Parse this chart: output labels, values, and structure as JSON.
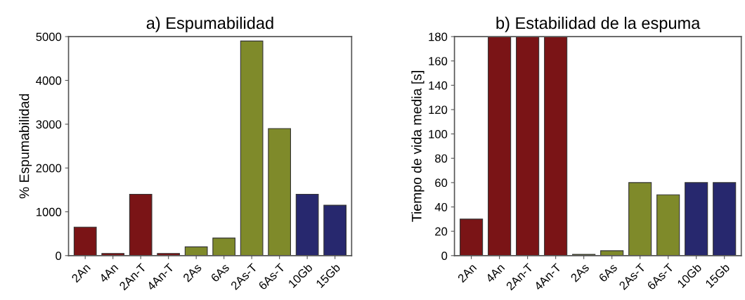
{
  "chart_data": [
    {
      "type": "bar",
      "title": "a) Espumabilidad",
      "ylabel": "% Espumabilidad",
      "categories": [
        "2An",
        "4An",
        "2An-T",
        "4An-T",
        "2As",
        "6As",
        "2As-T",
        "6As-T",
        "10Gb",
        "15Gb"
      ],
      "values": [
        650,
        50,
        1400,
        50,
        200,
        400,
        4900,
        2900,
        1400,
        1150
      ],
      "colors": [
        "#7a1416",
        "#7a1416",
        "#7a1416",
        "#7a1416",
        "#7f8a2a",
        "#7f8a2a",
        "#7f8a2a",
        "#7f8a2a",
        "#27286e",
        "#27286e"
      ],
      "ylim": [
        0,
        5000
      ],
      "yticks": [
        0,
        1000,
        2000,
        3000,
        4000,
        5000
      ],
      "grid": false
    },
    {
      "type": "bar",
      "title": "b) Estabilidad de la espuma",
      "ylabel": "Tiempo de vida media [s]",
      "categories": [
        "2An",
        "4An",
        "2An-T",
        "4An-T",
        "2As",
        "6As",
        "2As-T",
        "6As-T",
        "10Gb",
        "15Gb"
      ],
      "values": [
        30,
        180,
        180,
        180,
        1,
        4,
        60,
        50,
        60,
        60
      ],
      "colors": [
        "#7a1416",
        "#7a1416",
        "#7a1416",
        "#7a1416",
        "#7f8a2a",
        "#7f8a2a",
        "#7f8a2a",
        "#7f8a2a",
        "#27286e",
        "#27286e"
      ],
      "ylim": [
        0,
        180
      ],
      "yticks": [
        0,
        20,
        40,
        60,
        80,
        100,
        120,
        140,
        160,
        180
      ],
      "grid": false
    }
  ]
}
